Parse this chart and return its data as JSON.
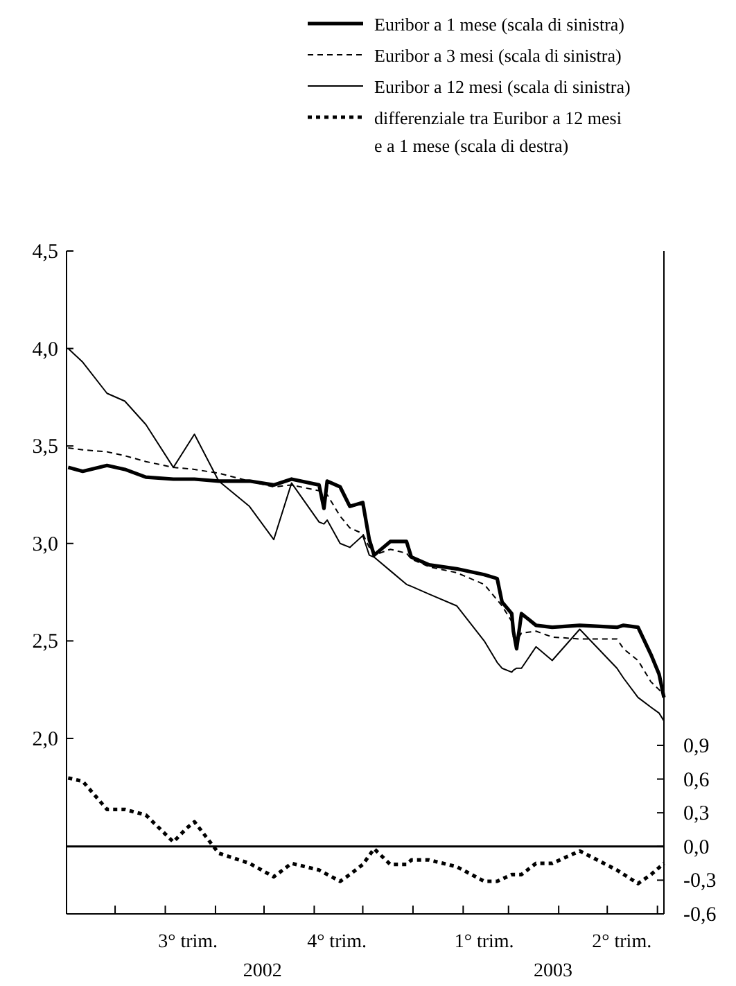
{
  "chart_data": {
    "type": "line",
    "legend": "top",
    "grid": false,
    "xlim": [
      "2002-06-01",
      "2003-06-05"
    ],
    "xticks": [
      {
        "value": "2002-07-01",
        "label": null
      },
      {
        "value": "2002-08-01",
        "label": null
      },
      {
        "value": "2002-08-15",
        "label": "3° trim."
      },
      {
        "value": "2002-09-01",
        "label": null
      },
      {
        "value": "2002-10-01",
        "label": null
      },
      {
        "value": "2002-11-01",
        "label": null
      },
      {
        "value": "2002-11-15",
        "label": "4° trim."
      },
      {
        "value": "2002-12-01",
        "label": null
      },
      {
        "value": "2003-01-01",
        "label": null
      },
      {
        "value": "2003-02-01",
        "label": null
      },
      {
        "value": "2003-02-14",
        "label": "1° trim."
      },
      {
        "value": "2003-03-01",
        "label": null
      },
      {
        "value": "2003-04-01",
        "label": null
      },
      {
        "value": "2003-05-01",
        "label": null
      },
      {
        "value": "2003-05-10",
        "label": "2° trim."
      },
      {
        "value": "2003-06-01",
        "label": null
      }
    ],
    "annotations": [
      "2002",
      "2003"
    ],
    "ylim": [
      1.1,
      4.5
    ],
    "yticks": [
      {
        "value": 2,
        "label": "2,0"
      },
      {
        "value": 2.5,
        "label": "2,5"
      },
      {
        "value": 3,
        "label": "3,0"
      },
      {
        "value": 3.5,
        "label": "3,5"
      },
      {
        "value": 4,
        "label": "4,0"
      },
      {
        "value": 4.5,
        "label": "4,5"
      }
    ],
    "y2lim": [
      -0.6,
      5.3
    ],
    "y2ticks": [
      {
        "value": -0.6,
        "label": "-0,6"
      },
      {
        "value": -0.3,
        "label": "-0,3"
      },
      {
        "value": 0,
        "label": "0,0"
      },
      {
        "value": 0.3,
        "label": "0,3"
      },
      {
        "value": 0.6,
        "label": "0,6"
      },
      {
        "value": 0.9,
        "label": "0,9"
      }
    ],
    "ref_lines": [
      {
        "axis": "y2",
        "value": 0,
        "color": "#000000",
        "line_style": "solid"
      }
    ],
    "x": [
      "2002-06-02",
      "2002-06-11",
      "2002-06-26",
      "2002-07-07",
      "2002-07-20",
      "2002-08-06",
      "2002-08-19",
      "2002-09-03",
      "2002-09-22",
      "2002-10-07",
      "2002-10-18",
      "2002-11-04",
      "2002-11-07",
      "2002-11-09",
      "2002-11-17",
      "2002-11-23",
      "2002-12-01",
      "2002-12-05",
      "2002-12-08",
      "2002-12-18",
      "2002-12-28",
      "2002-12-31",
      "2003-01-11",
      "2003-01-28",
      "2003-02-14",
      "2003-02-22",
      "2003-02-25",
      "2003-03-03",
      "2003-03-04",
      "2003-03-06",
      "2003-03-09",
      "2003-03-18",
      "2003-03-28",
      "2003-04-14",
      "2003-05-07",
      "2003-05-11",
      "2003-05-20",
      "2003-05-28",
      "2003-06-02",
      "2003-06-05"
    ],
    "series": [
      {
        "name": "Euribor a 1 mese (scala di sinistra)",
        "color": "#000000",
        "line_style": "solid",
        "values": [
          3.39,
          3.37,
          3.4,
          3.38,
          3.34,
          3.33,
          3.33,
          3.32,
          3.32,
          3.3,
          3.33,
          3.3,
          3.18,
          3.32,
          3.29,
          3.19,
          3.21,
          3.02,
          2.94,
          3.01,
          3.01,
          2.93,
          2.89,
          2.87,
          2.84,
          2.82,
          2.7,
          2.64,
          2.55,
          2.46,
          2.64,
          2.58,
          2.57,
          2.58,
          2.57,
          2.58,
          2.57,
          2.43,
          2.33,
          2.21
        ]
      },
      {
        "name": "Euribor a 3 mesi (scala di sinistra)",
        "color": "#000000",
        "line_style": "dashed",
        "values": [
          3.49,
          3.48,
          3.47,
          3.45,
          3.42,
          3.39,
          3.38,
          3.36,
          3.32,
          3.29,
          3.3,
          3.27,
          3.25,
          3.25,
          3.14,
          3.08,
          3.05,
          2.98,
          2.94,
          2.97,
          2.95,
          2.92,
          2.88,
          2.85,
          2.79,
          2.71,
          2.68,
          2.6,
          2.52,
          2.5,
          2.54,
          2.55,
          2.52,
          2.51,
          2.51,
          2.46,
          2.4,
          2.29,
          2.25,
          2.22
        ]
      },
      {
        "name": "Euribor a 12 mesi (scala di sinistra)",
        "color": "#000000",
        "line_style": "solid",
        "values": [
          4.0,
          3.93,
          3.77,
          3.73,
          3.61,
          3.39,
          3.56,
          3.32,
          3.19,
          3.02,
          3.31,
          3.11,
          3.1,
          3.12,
          3.0,
          2.98,
          3.04,
          2.94,
          2.93,
          2.86,
          2.79,
          2.78,
          2.74,
          2.68,
          2.5,
          2.39,
          2.36,
          2.34,
          2.35,
          2.36,
          2.36,
          2.47,
          2.4,
          2.56,
          2.36,
          2.31,
          2.21,
          2.16,
          2.13,
          2.09
        ]
      },
      {
        "name": "differenziale tra Euribor a 12 mesi\ne a 1 mese (scala di destra)",
        "color": "#000000",
        "line_style": "dotted",
        "axis": "y2",
        "x": [
          "2002-06-02",
          "2002-06-11",
          "2002-06-26",
          "2002-07-07",
          "2002-07-20",
          "2002-08-06",
          "2002-08-14",
          "2002-08-19",
          "2002-09-03",
          "2002-09-22",
          "2002-10-07",
          "2002-10-18",
          "2002-11-04",
          "2002-11-17",
          "2002-11-23",
          "2002-12-01",
          "2002-12-08",
          "2002-12-18",
          "2002-12-28",
          "2002-12-31",
          "2003-01-11",
          "2003-01-28",
          "2003-02-14",
          "2003-02-22",
          "2003-03-03",
          "2003-03-09",
          "2003-03-18",
          "2003-03-28",
          "2003-04-14",
          "2003-05-07",
          "2003-05-20",
          "2003-05-28",
          "2003-06-05"
        ],
        "values": [
          0.61,
          0.58,
          0.33,
          0.33,
          0.28,
          0.04,
          0.16,
          0.22,
          -0.06,
          -0.15,
          -0.27,
          -0.15,
          -0.21,
          -0.31,
          -0.25,
          -0.16,
          -0.02,
          -0.16,
          -0.16,
          -0.12,
          -0.12,
          -0.18,
          -0.31,
          -0.31,
          -0.25,
          -0.25,
          -0.15,
          -0.15,
          -0.04,
          -0.21,
          -0.33,
          -0.25,
          -0.15
        ]
      }
    ]
  }
}
